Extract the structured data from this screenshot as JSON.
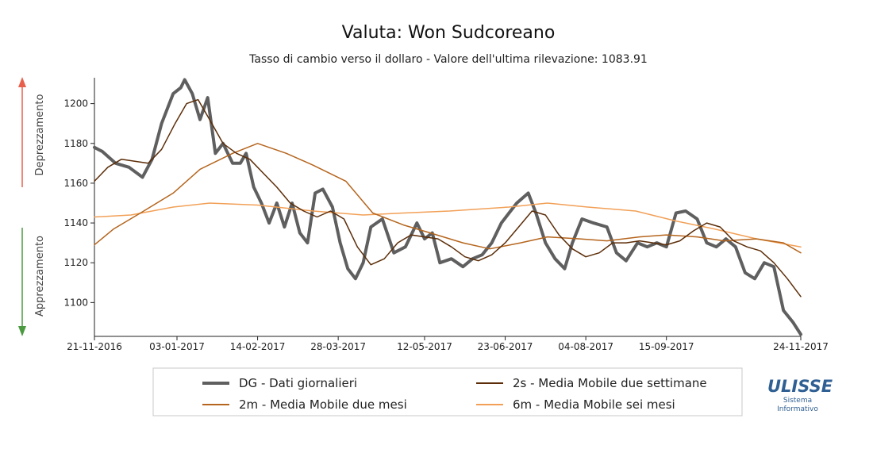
{
  "chart_data": {
    "type": "line",
    "title": "Valuta: Won Sudcoreano",
    "subtitle": "Tasso di cambio verso il dollaro - Valore dell'ultima rilevazione: 1083.91",
    "ylim": [
      1083,
      1213
    ],
    "yticks": [
      1100,
      1120,
      1140,
      1160,
      1180,
      1200
    ],
    "xlim": [
      "2016-11-21",
      "2017-11-24"
    ],
    "xticks": [
      "21-11-2016",
      "03-01-2017",
      "14-02-2017",
      "28-03-2017",
      "12-05-2017",
      "23-06-2017",
      "04-08-2017",
      "15-09-2017",
      "24-11-2017"
    ],
    "side_labels": {
      "up": "Deprezzamento",
      "down": "Apprezzamento"
    },
    "colors": {
      "up_arrow": "#e8604c",
      "down_arrow": "#4a9a3f"
    },
    "grid": false,
    "legend_position": "bottom",
    "series": [
      {
        "name": "DG - Dati giornalieri",
        "color": "#5f5f5f",
        "width": 4,
        "x": [
          "2016-11-21",
          "2016-11-25",
          "2016-12-02",
          "2016-12-09",
          "2016-12-16",
          "2016-12-21",
          "2016-12-26",
          "2017-01-01",
          "2017-01-05",
          "2017-01-07",
          "2017-01-11",
          "2017-01-15",
          "2017-01-19",
          "2017-01-23",
          "2017-01-27",
          "2017-02-01",
          "2017-02-05",
          "2017-02-08",
          "2017-02-12",
          "2017-02-16",
          "2017-02-20",
          "2017-02-24",
          "2017-02-28",
          "2017-03-04",
          "2017-03-08",
          "2017-03-12",
          "2017-03-16",
          "2017-03-20",
          "2017-03-25",
          "2017-03-29",
          "2017-04-02",
          "2017-04-06",
          "2017-04-10",
          "2017-04-14",
          "2017-04-20",
          "2017-04-26",
          "2017-05-02",
          "2017-05-08",
          "2017-05-12",
          "2017-05-16",
          "2017-05-20",
          "2017-05-26",
          "2017-06-01",
          "2017-06-06",
          "2017-06-11",
          "2017-06-16",
          "2017-06-21",
          "2017-06-25",
          "2017-06-29",
          "2017-07-05",
          "2017-07-09",
          "2017-07-14",
          "2017-07-19",
          "2017-07-24",
          "2017-07-28",
          "2017-08-02",
          "2017-08-08",
          "2017-08-15",
          "2017-08-20",
          "2017-08-25",
          "2017-08-31",
          "2017-09-05",
          "2017-09-10",
          "2017-09-15",
          "2017-09-20",
          "2017-09-25",
          "2017-10-01",
          "2017-10-06",
          "2017-10-11",
          "2017-10-16",
          "2017-10-21",
          "2017-10-26",
          "2017-10-31",
          "2017-11-05",
          "2017-11-10",
          "2017-11-15",
          "2017-11-20",
          "2017-11-24"
        ],
        "values": [
          1178,
          1176,
          1170,
          1168,
          1163,
          1172,
          1190,
          1205,
          1208,
          1212,
          1205,
          1192,
          1203,
          1175,
          1180,
          1170,
          1170,
          1175,
          1158,
          1150,
          1140,
          1150,
          1138,
          1150,
          1135,
          1130,
          1155,
          1157,
          1148,
          1130,
          1117,
          1112,
          1120,
          1138,
          1142,
          1125,
          1128,
          1140,
          1132,
          1135,
          1120,
          1122,
          1118,
          1122,
          1124,
          1130,
          1140,
          1145,
          1150,
          1155,
          1145,
          1130,
          1122,
          1117,
          1130,
          1142,
          1140,
          1138,
          1125,
          1121,
          1130,
          1128,
          1130,
          1128,
          1145,
          1146,
          1142,
          1130,
          1128,
          1132,
          1128,
          1115,
          1112,
          1120,
          1118,
          1096,
          1090,
          1084
        ]
      },
      {
        "name": "2s - Media Mobile due settimane",
        "color": "#5c2d08",
        "width": 1.5,
        "x": [
          "2016-11-21",
          "2016-11-28",
          "2016-12-05",
          "2016-12-12",
          "2016-12-19",
          "2016-12-26",
          "2017-01-02",
          "2017-01-08",
          "2017-01-14",
          "2017-01-20",
          "2017-01-27",
          "2017-02-03",
          "2017-02-10",
          "2017-02-17",
          "2017-02-24",
          "2017-03-03",
          "2017-03-10",
          "2017-03-17",
          "2017-03-24",
          "2017-03-31",
          "2017-04-07",
          "2017-04-14",
          "2017-04-21",
          "2017-04-28",
          "2017-05-05",
          "2017-05-12",
          "2017-05-19",
          "2017-05-26",
          "2017-06-02",
          "2017-06-09",
          "2017-06-16",
          "2017-06-23",
          "2017-06-30",
          "2017-07-07",
          "2017-07-14",
          "2017-07-21",
          "2017-07-28",
          "2017-08-04",
          "2017-08-11",
          "2017-08-18",
          "2017-08-25",
          "2017-09-01",
          "2017-09-08",
          "2017-09-15",
          "2017-09-22",
          "2017-09-29",
          "2017-10-06",
          "2017-10-13",
          "2017-10-20",
          "2017-10-27",
          "2017-11-03",
          "2017-11-10",
          "2017-11-17",
          "2017-11-24"
        ],
        "values": [
          1161,
          1168,
          1172,
          1171,
          1170,
          1177,
          1190,
          1200,
          1202,
          1192,
          1180,
          1175,
          1172,
          1165,
          1158,
          1150,
          1146,
          1143,
          1146,
          1142,
          1128,
          1119,
          1122,
          1130,
          1134,
          1133,
          1132,
          1128,
          1123,
          1121,
          1124,
          1130,
          1138,
          1146,
          1144,
          1134,
          1127,
          1123,
          1125,
          1130,
          1130,
          1131,
          1130,
          1129,
          1131,
          1136,
          1140,
          1138,
          1131,
          1128,
          1126,
          1120,
          1112,
          1103
        ]
      },
      {
        "name": "2m - Media Mobile due mesi",
        "color": "#b5651d",
        "width": 1.5,
        "x": [
          "2016-11-21",
          "2016-12-01",
          "2016-12-15",
          "2017-01-01",
          "2017-01-15",
          "2017-02-01",
          "2017-02-14",
          "2017-03-01",
          "2017-03-15",
          "2017-04-01",
          "2017-04-15",
          "2017-05-01",
          "2017-05-15",
          "2017-06-01",
          "2017-06-15",
          "2017-07-01",
          "2017-07-15",
          "2017-08-01",
          "2017-08-15",
          "2017-09-01",
          "2017-09-15",
          "2017-10-01",
          "2017-10-15",
          "2017-11-01",
          "2017-11-15",
          "2017-11-24"
        ],
        "values": [
          1129,
          1137,
          1145,
          1155,
          1167,
          1175,
          1180,
          1175,
          1169,
          1161,
          1145,
          1139,
          1135,
          1130,
          1127,
          1130,
          1133,
          1132,
          1131,
          1133,
          1134,
          1133,
          1131,
          1132,
          1130,
          1125
        ]
      },
      {
        "name": "6m - Media Mobile sei mesi",
        "color": "#f2a057",
        "width": 1.5,
        "x": [
          "2016-11-21",
          "2016-12-10",
          "2017-01-01",
          "2017-01-20",
          "2017-02-14",
          "2017-03-15",
          "2017-04-10",
          "2017-05-01",
          "2017-05-25",
          "2017-06-25",
          "2017-07-15",
          "2017-08-05",
          "2017-08-30",
          "2017-09-20",
          "2017-10-10",
          "2017-11-01",
          "2017-11-24"
        ],
        "values": [
          1143,
          1144,
          1148,
          1150,
          1149,
          1146,
          1144,
          1145,
          1146,
          1148,
          1150,
          1148,
          1146,
          1141,
          1137,
          1132,
          1128
        ]
      }
    ]
  },
  "logo": {
    "name": "ULISSE",
    "tagline_1": "Sistema",
    "tagline_2": "Informativo"
  }
}
